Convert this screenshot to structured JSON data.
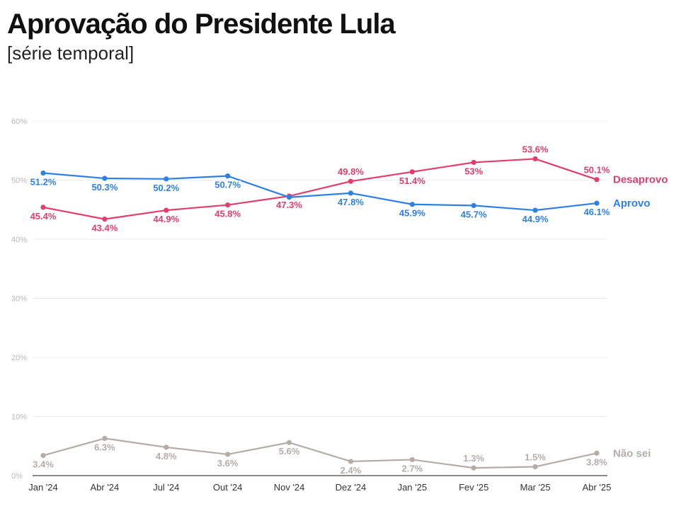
{
  "header": {
    "title": "Aprovação do Presidente Lula",
    "subtitle": "[série temporal]"
  },
  "chart_data": {
    "type": "line",
    "title": "Aprovação do Presidente Lula",
    "subtitle": "[série temporal]",
    "xlabel": "",
    "ylabel": "",
    "ylim": [
      0,
      60
    ],
    "grid": true,
    "yticks": [
      0,
      10,
      20,
      30,
      40,
      50,
      60
    ],
    "ytick_labels": [
      "0%",
      "10%",
      "20%",
      "30%",
      "40%",
      "50%",
      "60%"
    ],
    "categories": [
      "Jan '24",
      "Abr '24",
      "Jul '24",
      "Out '24",
      "Nov '24",
      "Dez '24",
      "Jan '25",
      "Fev '25",
      "Mar '25",
      "Abr '25"
    ],
    "series": [
      {
        "name": "Desaprovo",
        "color": "#e23d6c",
        "values": [
          45.4,
          43.4,
          44.9,
          45.8,
          47.3,
          49.8,
          51.4,
          53,
          53.6,
          50.1
        ],
        "labels": [
          "45.4%",
          "43.4%",
          "44.9%",
          "45.8%",
          "47.3%",
          "49.8%",
          "51.4%",
          "53%",
          "53.6%",
          "50.1%"
        ]
      },
      {
        "name": "Aprovo",
        "color": "#2f80e4",
        "values": [
          51.2,
          50.3,
          50.2,
          50.7,
          47.1,
          47.8,
          45.9,
          45.7,
          44.9,
          46.1
        ],
        "labels": [
          "51.2%",
          "50.3%",
          "50.2%",
          "50.7%",
          null,
          "47.8%",
          "45.9%",
          "45.7%",
          "44.9%",
          "46.1%"
        ]
      },
      {
        "name": "Não sei",
        "color": "#b5aca8",
        "values": [
          3.4,
          6.3,
          4.8,
          3.6,
          5.6,
          2.4,
          2.7,
          1.3,
          1.5,
          3.8
        ],
        "labels": [
          "3.4%",
          "6.3%",
          "4.8%",
          "3.6%",
          "5.6%",
          "2.4%",
          "2.7%",
          "1.3%",
          "1.5%",
          "3.8%"
        ]
      }
    ]
  }
}
